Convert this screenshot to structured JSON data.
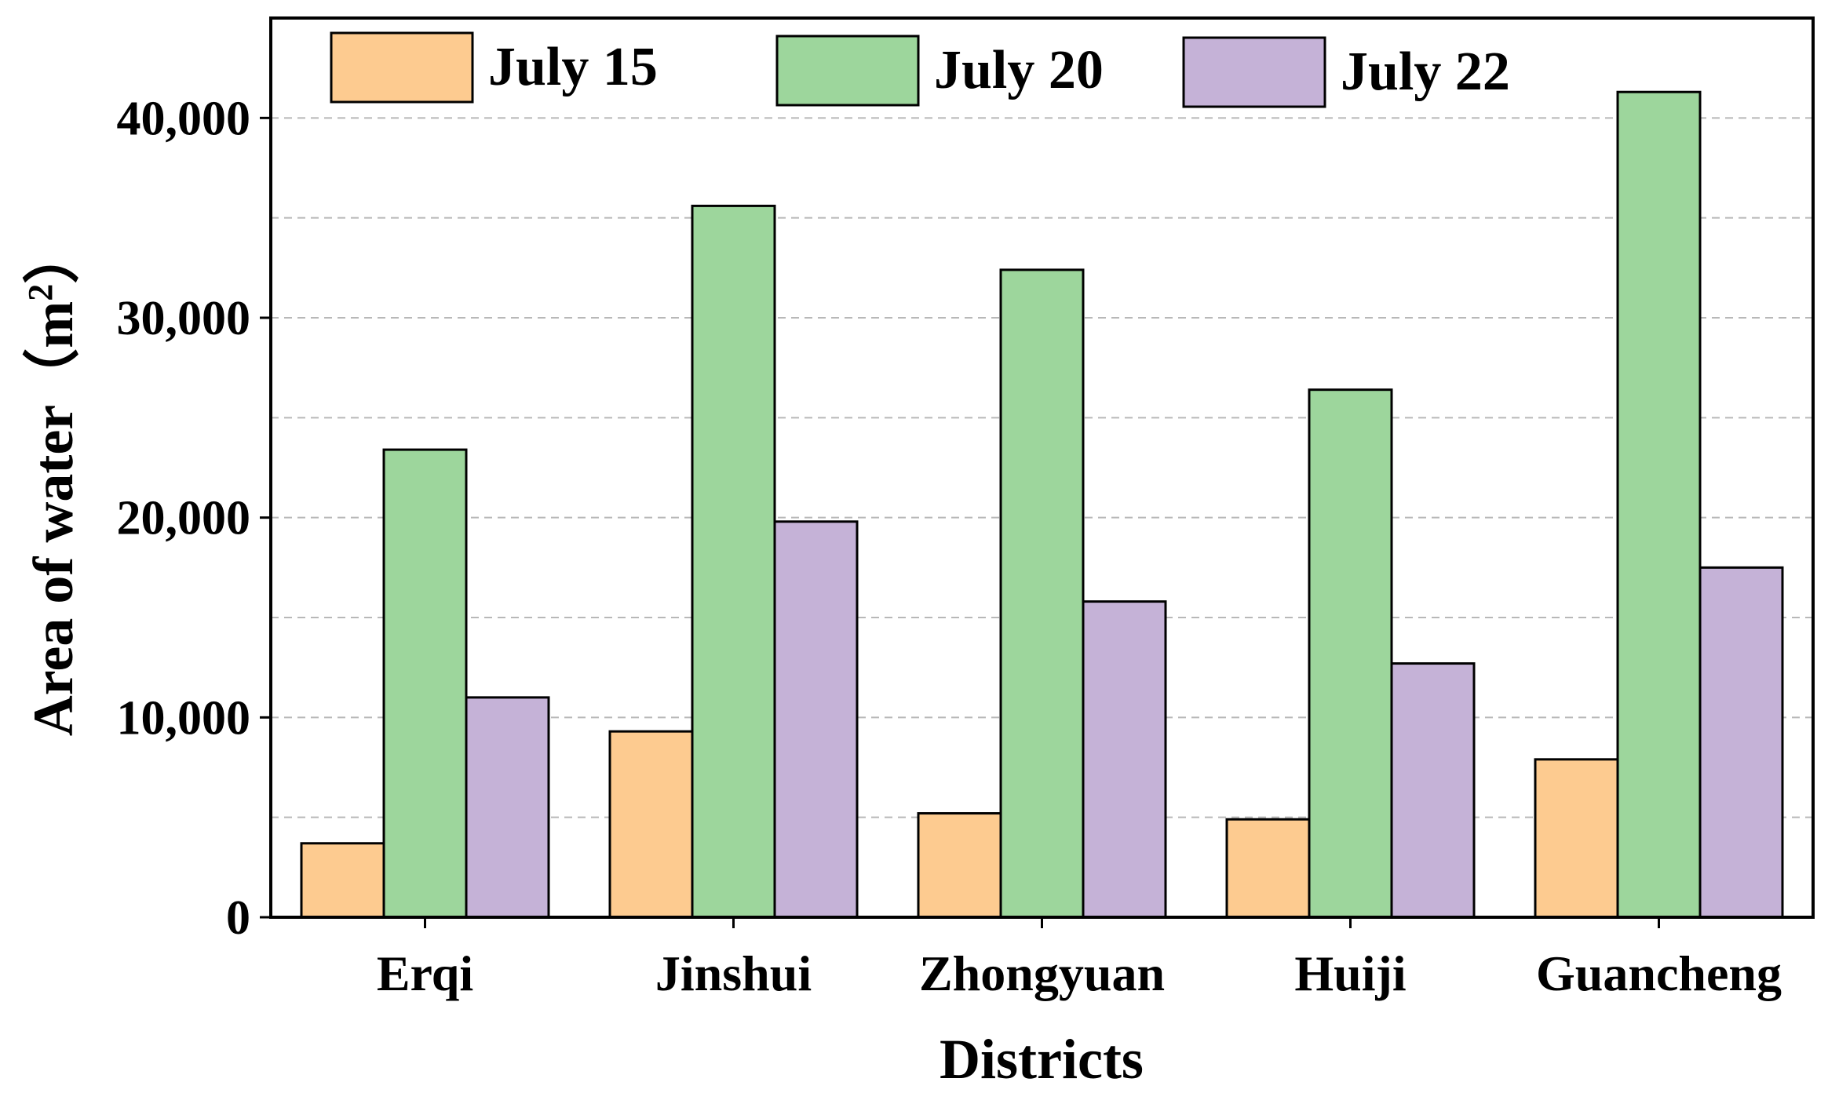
{
  "chart_data": {
    "type": "bar",
    "title": "",
    "xlabel": "Districts",
    "ylabel": "Area of water",
    "ylabel_unit": "（m",
    "ylabel_unit_sup": "2",
    "ylabel_unit_close": "）",
    "ylim": [
      0,
      45000
    ],
    "yticks": [
      0,
      10000,
      20000,
      30000,
      40000
    ],
    "ytick_labels": [
      "0",
      "10,000",
      "20,000",
      "30,000",
      "40,000"
    ],
    "grid": true,
    "legend_position": "top",
    "categories": [
      "Erqi",
      "Jinshui",
      "Zhongyuan",
      "Huiji",
      "Guancheng"
    ],
    "series": [
      {
        "name": "July 15",
        "color": "#fdcb90",
        "values": [
          3700,
          9300,
          5200,
          4900,
          7900
        ]
      },
      {
        "name": "July 20",
        "color": "#9dd69c",
        "values": [
          23400,
          35600,
          32400,
          26400,
          41300
        ]
      },
      {
        "name": "July 22",
        "color": "#c5b2d7",
        "values": [
          11000,
          19800,
          15800,
          12700,
          17500
        ]
      }
    ]
  }
}
